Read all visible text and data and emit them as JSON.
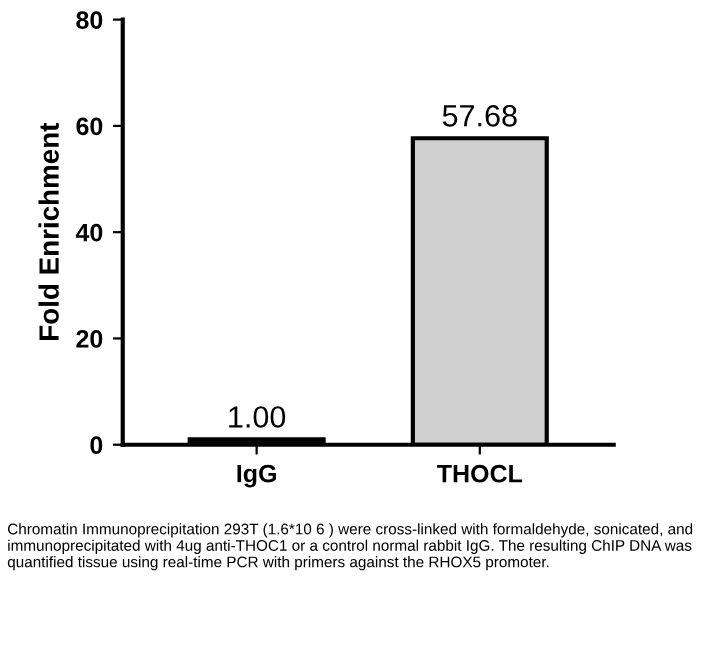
{
  "chart_data": {
    "type": "bar",
    "ylabel": "Fold Enrichment",
    "categories": [
      "IgG",
      "THOCL"
    ],
    "values": [
      1.0,
      57.68
    ],
    "colors": [
      "#111111",
      "#cfcfcf"
    ],
    "value_labels": [
      "1.00",
      "57.68"
    ],
    "ylim": [
      0,
      80
    ],
    "yticks": [
      0,
      20,
      40,
      60,
      80
    ],
    "grid": false,
    "legend": false,
    "annotations": [
      "Chromatin Immunoprecipitation 293T (1.6*10 6 ) were cross-linked with formaldehyde, sonicated, and immunoprecipitated with 4ug anti-THOC1 or a control normal rabbit IgG. The resulting ChIP DNA was quantified tissue using real-time PCR with primers against the RHOX5 promoter."
    ]
  }
}
